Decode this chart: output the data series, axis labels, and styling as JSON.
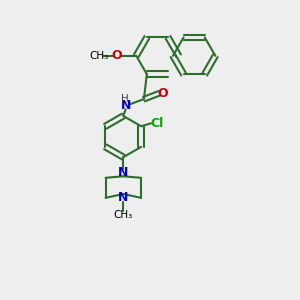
{
  "bg_color": "#eeeeee",
  "bond_color": "#2d6e2d",
  "bond_width": 1.5,
  "atom_colors": {
    "O": "#cc0000",
    "N": "#0000cc",
    "Cl": "#00aa00",
    "H": "#444444",
    "CH3": "#000000"
  },
  "figsize": [
    3.0,
    3.0
  ],
  "dpi": 100,
  "xlim": [
    0,
    10
  ],
  "ylim": [
    0,
    10
  ]
}
